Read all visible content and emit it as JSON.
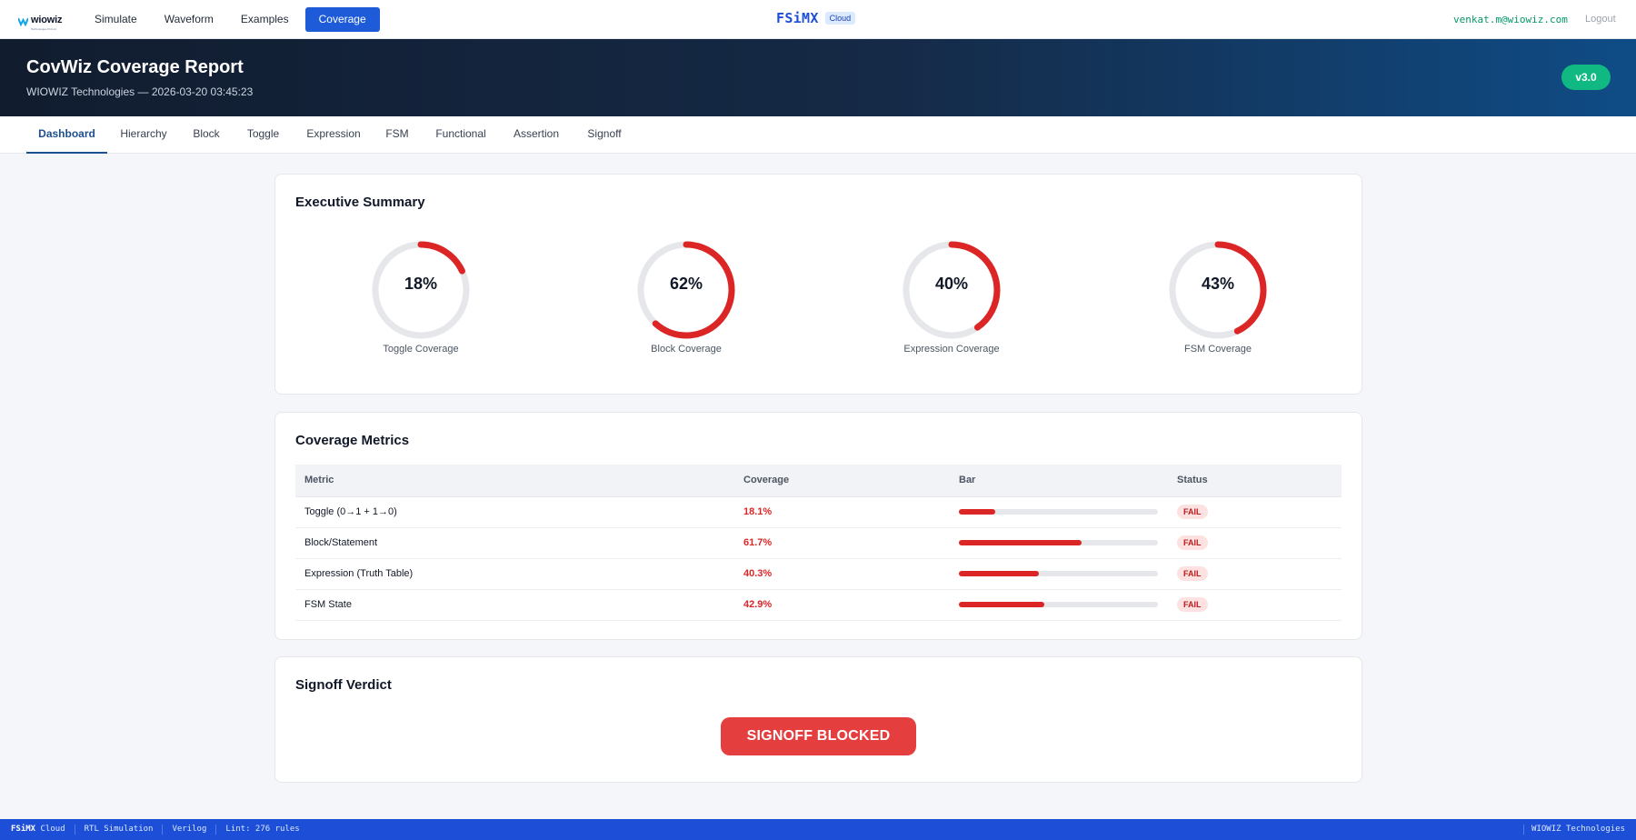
{
  "topnav": {
    "logo_text": "wiowiz",
    "logo_tagline": "Technologies Pvt Ltd",
    "items": [
      {
        "label": "Simulate",
        "active": false
      },
      {
        "label": "Waveform",
        "active": false
      },
      {
        "label": "Examples",
        "active": false
      },
      {
        "label": "Coverage",
        "active": true
      }
    ],
    "brand_name": "FSiMX",
    "brand_badge": "Cloud",
    "user_email": "venkat.m@wiowiz.com",
    "logout_label": "Logout"
  },
  "banner": {
    "title": "CovWiz Coverage Report",
    "subtitle": "WIOWIZ Technologies — 2026-03-20 03:45:23",
    "version": "v3.0"
  },
  "tabs": [
    {
      "label": "Dashboard",
      "active": true
    },
    {
      "label": "Hierarchy",
      "active": false
    },
    {
      "label": "Block",
      "active": false
    },
    {
      "label": "Toggle",
      "active": false
    },
    {
      "label": "Expression",
      "active": false
    },
    {
      "label": "FSM",
      "active": false
    },
    {
      "label": "Functional",
      "active": false
    },
    {
      "label": "Assertion",
      "active": false
    },
    {
      "label": "Signoff",
      "active": false
    }
  ],
  "summary": {
    "title": "Executive Summary",
    "gauges": [
      {
        "value": "18%",
        "fraction": 0.181,
        "label": "Toggle Coverage"
      },
      {
        "value": "62%",
        "fraction": 0.617,
        "label": "Block Coverage"
      },
      {
        "value": "40%",
        "fraction": 0.403,
        "label": "Expression Coverage"
      },
      {
        "value": "43%",
        "fraction": 0.429,
        "label": "FSM Coverage"
      }
    ]
  },
  "metrics": {
    "title": "Coverage Metrics",
    "headers": {
      "metric": "Metric",
      "coverage": "Coverage",
      "bar": "Bar",
      "status": "Status"
    },
    "rows": [
      {
        "metric": "Toggle (0→1 + 1→0)",
        "coverage": "18.1%",
        "fraction": 0.181,
        "status": "FAIL"
      },
      {
        "metric": "Block/Statement",
        "coverage": "61.7%",
        "fraction": 0.617,
        "status": "FAIL"
      },
      {
        "metric": "Expression (Truth Table)",
        "coverage": "40.3%",
        "fraction": 0.403,
        "status": "FAIL"
      },
      {
        "metric": "FSM State",
        "coverage": "42.9%",
        "fraction": 0.429,
        "status": "FAIL"
      }
    ]
  },
  "verdict": {
    "title": "Signoff Verdict",
    "label": "SIGNOFF BLOCKED"
  },
  "statusbar": {
    "brand": "FSiMX",
    "brand_suffix": "Cloud",
    "segments": [
      "RTL Simulation",
      "Verilog",
      "Lint: 276 rules"
    ],
    "right": "WIOWIZ Technologies"
  },
  "colors": {
    "accent": "#1d5bd8",
    "fail": "#dc2626",
    "success": "#10b981"
  }
}
